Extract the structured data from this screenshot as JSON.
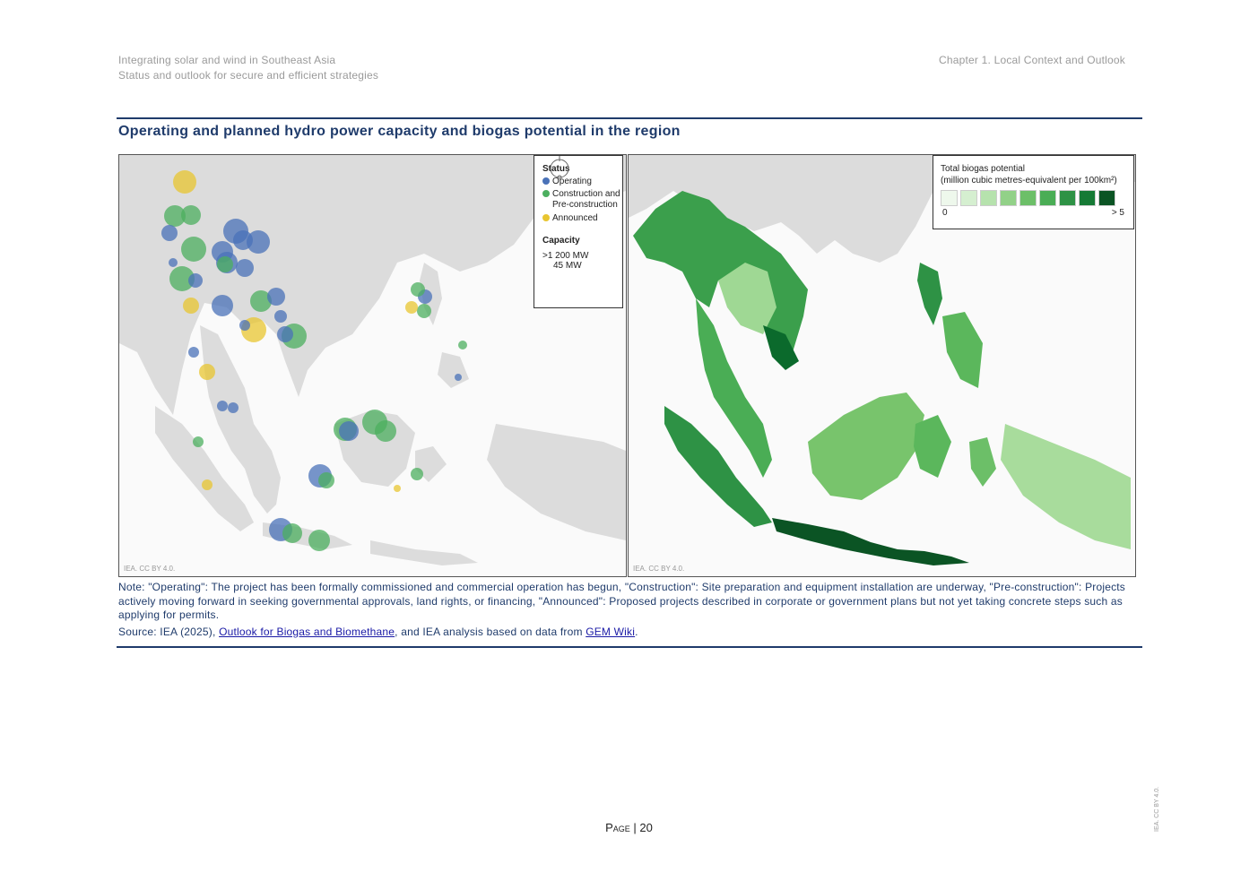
{
  "header": {
    "left_line1": "Integrating solar and wind in Southeast Asia",
    "left_line2": "Status and outlook for secure and efficient strategies",
    "right": "Chapter 1. Local Context and Outlook"
  },
  "figure": {
    "title": "Operating and planned hydro power capacity and biogas potential in the region",
    "credit_left": "IEA. CC BY 4.0.",
    "credit_right": "IEA. CC BY 4.0."
  },
  "legend_hydro": {
    "status_heading": "Status",
    "items": [
      {
        "label": "Operating",
        "color": "#4a72b8"
      },
      {
        "label": "Construction and Pre-construction",
        "color": "#4caf5f"
      },
      {
        "label": "Announced",
        "color": "#e8c530"
      }
    ],
    "capacity_heading": "Capacity",
    "capacity_max": ">1 200 MW",
    "capacity_min": "45 MW"
  },
  "legend_biogas": {
    "title_line1": "Total biogas potential",
    "title_line2": "(million cubic metres-equivalent per 100km²)",
    "scale_colors": [
      "#eef8ec",
      "#d5efd0",
      "#b6e2ad",
      "#92d188",
      "#6cbf68",
      "#4aad55",
      "#2e9245",
      "#167a35",
      "#0b5424"
    ],
    "min_label": "0",
    "max_label": "> 5"
  },
  "notes": {
    "note": "Note: \"Operating\": The project has been formally commissioned and commercial operation has begun, \"Construction\": Site preparation and equipment installation are underway, \"Pre-construction\": Projects actively moving forward in seeking governmental approvals, land rights, or financing, \"Announced\": Proposed projects described in corporate or government plans but not yet taking concrete steps such as applying for permits.",
    "source_prefix": "Source: IEA (2025), ",
    "source_link1": "Outlook for Biogas and Biomethane",
    "source_middle": ", and IEA analysis based on data from ",
    "source_link2": "GEM Wiki",
    "source_suffix": "."
  },
  "footer": {
    "page_label": "Page",
    "separator": " | ",
    "page_number": "20",
    "side_credit": "IEA. CC BY 4.0."
  }
}
